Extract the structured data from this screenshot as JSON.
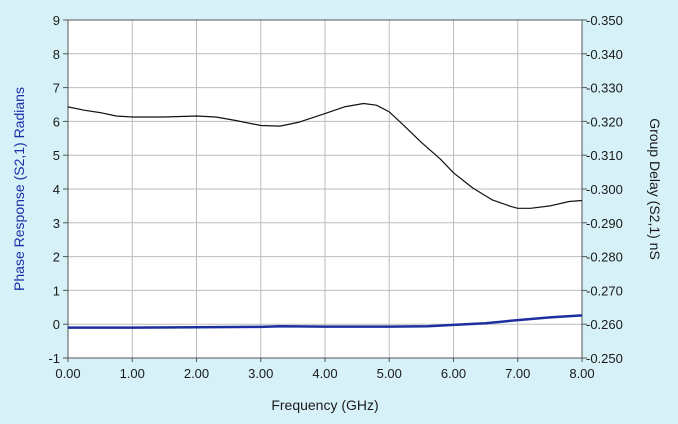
{
  "colors": {
    "background": "#d6f2f8",
    "plot_area": "#ffffff",
    "grid": "#bdbdbd",
    "axis": "#555555",
    "text": "#1a1a1a",
    "left_axis_title": "#1a2fa8",
    "phase_series": "#1c2fa0",
    "delay_series": "#111111"
  },
  "chart_data": {
    "type": "line",
    "xlabel": "Frequency (GHz)",
    "ylabel_left": "Phase Response (S2,1) Radians",
    "ylabel_right": "Group Delay (S2,1) nS",
    "xlim": [
      0,
      8
    ],
    "ylim_left": [
      -1,
      9
    ],
    "ylim_right": [
      -0.25,
      -0.35
    ],
    "grid": true,
    "x_ticks": [
      "0.00",
      "1.00",
      "2.00",
      "3.00",
      "4.00",
      "5.00",
      "6.00",
      "7.00",
      "8.00"
    ],
    "left_ticks": [
      "-1",
      "0",
      "1",
      "2",
      "3",
      "4",
      "5",
      "6",
      "7",
      "8",
      "9"
    ],
    "right_ticks": [
      "-0.250",
      "-0.260",
      "-0.270",
      "-0.280",
      "-0.290",
      "-0.300",
      "-0.310",
      "-0.320",
      "-0.330",
      "-0.340",
      "-0.350"
    ],
    "series": [
      {
        "axis": "left",
        "x": [
          0,
          1,
          2,
          3,
          3.3,
          4,
          5,
          5.6,
          6,
          6.5,
          7,
          7.5,
          8
        ],
        "y": [
          -0.1,
          -0.1,
          -0.09,
          -0.08,
          -0.06,
          -0.07,
          -0.07,
          -0.06,
          -0.02,
          0.03,
          0.12,
          0.2,
          0.26
        ]
      },
      {
        "axis": "right",
        "x": [
          0,
          0.25,
          0.5,
          0.75,
          1,
          1.5,
          2,
          2.3,
          2.6,
          3,
          3.3,
          3.6,
          4,
          4.3,
          4.6,
          4.8,
          5,
          5.2,
          5.5,
          5.8,
          6,
          6.3,
          6.6,
          6.9,
          7,
          7.2,
          7.5,
          7.8,
          8
        ],
        "y": [
          -0.3243,
          -0.3233,
          -0.3226,
          -0.3216,
          -0.3213,
          -0.3213,
          -0.3216,
          -0.3213,
          -0.3203,
          -0.3188,
          -0.3186,
          -0.3198,
          -0.3223,
          -0.3243,
          -0.3253,
          -0.3248,
          -0.3228,
          -0.3193,
          -0.3138,
          -0.3088,
          -0.3048,
          -0.3003,
          -0.2968,
          -0.2948,
          -0.2943,
          -0.2943,
          -0.295,
          -0.2963,
          -0.2966
        ]
      }
    ]
  }
}
